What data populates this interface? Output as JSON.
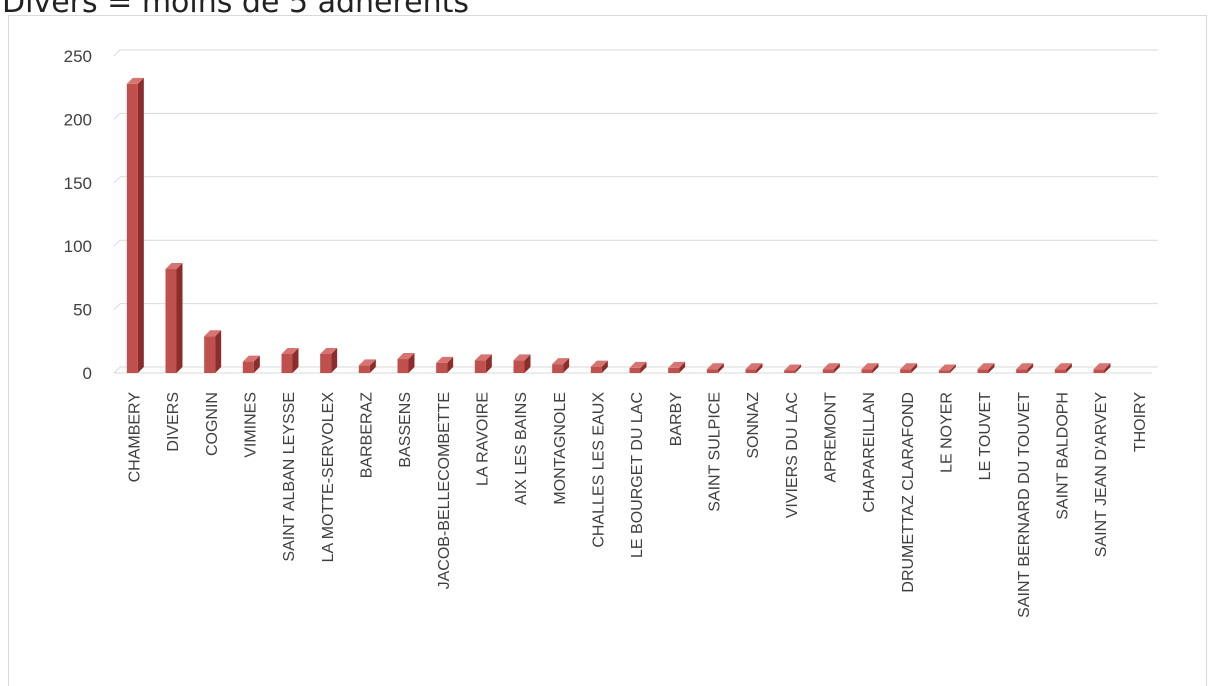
{
  "header": {
    "title": "Divers = moins de 5 adhérents"
  },
  "chart_data": {
    "type": "bar",
    "title": "",
    "xlabel": "",
    "ylabel": "",
    "ylim": [
      0,
      250
    ],
    "yticks": [
      "0",
      "50",
      "100",
      "150",
      "200",
      "250"
    ],
    "yticks_values": [
      0,
      50,
      100,
      150,
      200,
      250
    ],
    "grid": true,
    "legend": "none",
    "bar_color": "#c0504d",
    "bar_side_color": "#8b2e2b",
    "bar_top_color": "#d77370",
    "categories": [
      "CHAMBERY",
      "DIVERS",
      "COGNIN",
      "VIMINES",
      "SAINT ALBAN LEYSSE",
      "LA MOTTE-SERVOLEX",
      "BARBERAZ",
      "BASSENS",
      "JACOB-BELLECOMBETTE",
      "LA RAVOIRE",
      "AIX LES BAINS",
      "MONTAGNOLE",
      "CHALLES LES EAUX",
      "LE BOURGET DU LAC",
      "BARBY",
      "SAINT SULPICE",
      "SONNAZ",
      "VIVIERS DU LAC",
      "APREMONT",
      "CHAPAREILLAN",
      "DRUMETTAZ CLARAFOND",
      "LE NOYER",
      "LE TOUVET",
      "SAINT BERNARD DU TOUVET",
      "SAINT BALDOPH",
      "SAINT JEAN D'ARVEY",
      "THOIRY"
    ],
    "values": [
      228,
      82,
      29,
      9,
      15,
      15,
      6,
      11,
      8,
      10,
      10,
      7,
      5,
      4,
      4,
      3,
      3,
      2,
      3,
      3,
      3,
      2,
      3,
      3,
      3,
      3,
      0
    ]
  }
}
